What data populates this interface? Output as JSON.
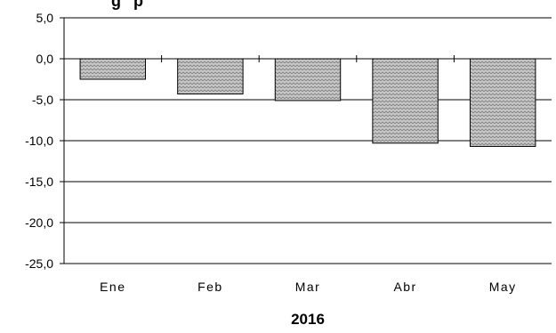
{
  "chart_data": {
    "type": "bar",
    "title": "",
    "title_partial_visible": "...g ...p...",
    "xlabel": "2016",
    "ylabel": "",
    "categories": [
      "Ene",
      "Feb",
      "Mar",
      "Abr",
      "May"
    ],
    "values": [
      -2.5,
      -4.3,
      -5.1,
      -10.3,
      -10.7
    ],
    "ylim": [
      -25.0,
      5.0
    ],
    "yticks": [
      "5,0",
      "0,0",
      "-5,0",
      "-10,0",
      "-15,0",
      "-20,0",
      "-25,0"
    ],
    "ytick_values": [
      5,
      0,
      -5,
      -10,
      -15,
      -20,
      -25
    ],
    "grid": "horizontal",
    "bar_fill": "#c8c8c8",
    "bar_pattern_color": "#7a7a7a",
    "bar_stroke": "#000000",
    "grid_color": "#000000"
  }
}
